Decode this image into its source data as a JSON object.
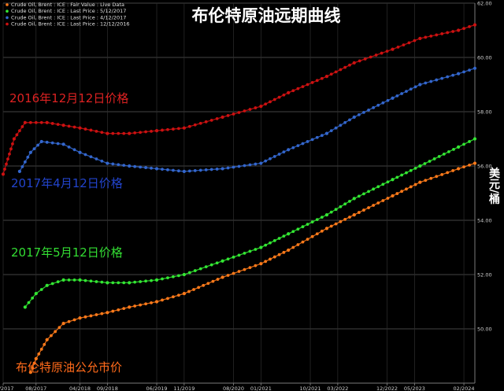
{
  "chart_data": {
    "type": "line",
    "title": "布伦特原油远期曲线",
    "ylabel": "美元/桶",
    "ylim": [
      48.0,
      62.0
    ],
    "yticks": [
      "50.00",
      "52.00",
      "54.00",
      "56.00",
      "58.00",
      "60.00",
      "62.00"
    ],
    "xticks": [
      "02/2017",
      "08/2017",
      "04/2018",
      "09/2018",
      "06/2019",
      "11/2019",
      "08/2020",
      "01/2021",
      "10/2021",
      "03/2022",
      "12/2022",
      "05/2023",
      "02/2024"
    ],
    "grid": true,
    "legend_position": "top-left",
    "legend": [
      {
        "label": "Crude Oil, Brent : ICE : Fair Value : Live Data",
        "color": "#ff7a1a"
      },
      {
        "label": "Crude Oil, Brent : ICE : Last Price : 5/12/2017",
        "color": "#33e633"
      },
      {
        "label": "Crude Oil, Brent : ICE : Last Price : 4/12/2017",
        "color": "#3366cc"
      },
      {
        "label": "Crude Oil, Brent : ICE : Last Price : 12/12/2016",
        "color": "#cc1111"
      }
    ],
    "annotations": [
      {
        "text": "2016年12月12日价格",
        "color": "#dd2222"
      },
      {
        "text": "2017年4月12日价格",
        "color": "#2244cc"
      },
      {
        "text": "2017年5月12日价格",
        "color": "#33dd33"
      },
      {
        "text": "布伦特原油公允市价",
        "color": "#ff6a1a"
      }
    ],
    "x_range": [
      "2017-02",
      "2024-04"
    ],
    "series": [
      {
        "name": "Crude Oil, Brent : ICE : Fair Value : Live Data",
        "color": "#ff7a1a",
        "x": [
          "2017-07",
          "2017-08",
          "2017-10",
          "2018-01",
          "2018-04",
          "2018-09",
          "2019-01",
          "2019-06",
          "2019-11",
          "2020-06",
          "2021-01",
          "2021-06",
          "2022-01",
          "2022-06",
          "2023-01",
          "2023-06",
          "2024-01",
          "2024-04"
        ],
        "values": [
          48.4,
          48.9,
          49.6,
          50.2,
          50.4,
          50.6,
          50.8,
          51.0,
          51.3,
          51.9,
          52.4,
          52.9,
          53.7,
          54.2,
          54.9,
          55.4,
          55.9,
          56.1
        ]
      },
      {
        "name": "Crude Oil, Brent : ICE : Last Price : 5/12/2017",
        "color": "#33e633",
        "x": [
          "2017-06",
          "2017-08",
          "2017-10",
          "2018-01",
          "2018-04",
          "2018-09",
          "2019-01",
          "2019-06",
          "2019-11",
          "2020-06",
          "2021-01",
          "2021-06",
          "2022-01",
          "2022-06",
          "2023-01",
          "2023-06",
          "2024-01",
          "2024-04"
        ],
        "values": [
          50.8,
          51.3,
          51.6,
          51.8,
          51.8,
          51.7,
          51.7,
          51.8,
          52.0,
          52.5,
          53.0,
          53.5,
          54.2,
          54.8,
          55.5,
          56.0,
          56.7,
          57.0
        ]
      },
      {
        "name": "Crude Oil, Brent : ICE : Last Price : 4/12/2017",
        "color": "#3366cc",
        "x": [
          "2017-05",
          "2017-07",
          "2017-09",
          "2018-01",
          "2018-04",
          "2018-09",
          "2019-01",
          "2019-06",
          "2019-11",
          "2020-06",
          "2021-01",
          "2021-06",
          "2022-01",
          "2022-06",
          "2023-01",
          "2023-06",
          "2024-01",
          "2024-04"
        ],
        "values": [
          55.8,
          56.5,
          56.9,
          56.8,
          56.5,
          56.1,
          56.0,
          55.9,
          55.8,
          55.9,
          56.1,
          56.6,
          57.2,
          57.8,
          58.5,
          59.0,
          59.4,
          59.6
        ]
      },
      {
        "name": "Crude Oil, Brent : ICE : Last Price : 12/12/2016",
        "color": "#cc1111",
        "x": [
          "2017-02",
          "2017-04",
          "2017-06",
          "2017-10",
          "2018-01",
          "2018-04",
          "2018-09",
          "2019-01",
          "2019-06",
          "2019-11",
          "2020-06",
          "2021-01",
          "2021-06",
          "2022-01",
          "2022-06",
          "2023-01",
          "2023-06",
          "2024-01",
          "2024-04"
        ],
        "values": [
          55.7,
          57.0,
          57.6,
          57.6,
          57.5,
          57.4,
          57.2,
          57.2,
          57.3,
          57.4,
          57.8,
          58.2,
          58.7,
          59.3,
          59.8,
          60.3,
          60.7,
          61.0,
          61.2
        ]
      }
    ]
  }
}
